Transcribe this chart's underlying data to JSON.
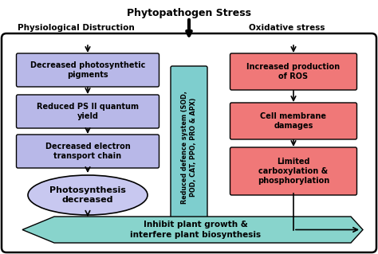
{
  "title": "Phytopathogen Stress",
  "left_header": "Physiological Distruction",
  "right_header": "Oxidative stress",
  "left_boxes": [
    "Decreased photosynthetic\npigments",
    "Reduced PS II quantum\nyield",
    "Decreased electron\ntransport chain"
  ],
  "left_ellipse": "Photosynthesis\ndecreased",
  "center_box_text": "Reduced defence system (SOD,\nPOD, CAT, PPO, PRO & APX)",
  "right_boxes": [
    "Increased production\nof ROS",
    "Cell membrane\ndamages",
    "Limited\ncarboxylation &\nphosphorylation"
  ],
  "bottom_arrow_text": "Inhibit plant growth &\ninterfere plant biosynthesis",
  "left_box_color": "#b8b8e8",
  "left_ellipse_color": "#c8c8f0",
  "right_box_color": "#f07878",
  "center_box_color": "#7ecece",
  "bottom_arrow_color": "#88d4cc",
  "outer_bg": "#ffffff",
  "text_color": "#000000"
}
